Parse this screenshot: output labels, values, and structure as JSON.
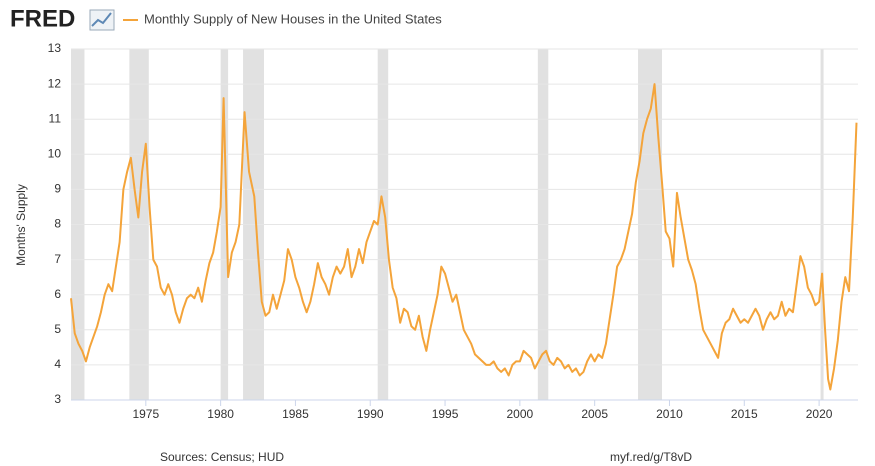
{
  "chart_data": {
    "type": "line",
    "logo": "FRED",
    "ylabel": "Months' Supply",
    "source": "Sources: Census; HUD",
    "link": "myf.red/g/T8vD",
    "xlim": [
      1970,
      2022.6
    ],
    "ylim": [
      3,
      13
    ],
    "xticks": [
      1975,
      1980,
      1985,
      1990,
      1995,
      2000,
      2005,
      2010,
      2015,
      2020
    ],
    "yticks": [
      3,
      4,
      5,
      6,
      7,
      8,
      9,
      10,
      11,
      12,
      13
    ],
    "grid": true,
    "recession_color": "#e1e1e1",
    "recessions": [
      [
        1970.0,
        1970.9
      ],
      [
        1973.9,
        1975.2
      ],
      [
        1980.0,
        1980.5
      ],
      [
        1981.5,
        1982.9
      ],
      [
        1990.5,
        1991.2
      ],
      [
        2001.2,
        2001.9
      ],
      [
        2007.9,
        2009.5
      ],
      [
        2020.1,
        2020.3
      ]
    ],
    "x": [
      1970,
      1970.25,
      1970.5,
      1970.75,
      1971,
      1971.25,
      1971.5,
      1971.75,
      1972,
      1972.25,
      1972.5,
      1972.75,
      1973,
      1973.25,
      1973.5,
      1973.75,
      1974,
      1974.25,
      1974.5,
      1974.75,
      1975,
      1975.25,
      1975.5,
      1975.75,
      1976,
      1976.25,
      1976.5,
      1976.75,
      1977,
      1977.25,
      1977.5,
      1977.75,
      1978,
      1978.25,
      1978.5,
      1978.75,
      1979,
      1979.25,
      1979.5,
      1979.75,
      1980,
      1980.2,
      1980.5,
      1980.75,
      1981,
      1981.25,
      1981.6,
      1981.9,
      1982.25,
      1982.5,
      1982.75,
      1983,
      1983.25,
      1983.5,
      1983.75,
      1984,
      1984.25,
      1984.5,
      1984.75,
      1985,
      1985.25,
      1985.5,
      1985.75,
      1986,
      1986.25,
      1986.5,
      1986.75,
      1987,
      1987.25,
      1987.5,
      1987.75,
      1988,
      1988.25,
      1988.5,
      1988.75,
      1989,
      1989.25,
      1989.5,
      1989.75,
      1990,
      1990.25,
      1990.5,
      1990.75,
      1991,
      1991.25,
      1991.5,
      1991.75,
      1992,
      1992.25,
      1992.5,
      1992.75,
      1993,
      1993.25,
      1993.5,
      1993.75,
      1994,
      1994.25,
      1994.5,
      1994.75,
      1995,
      1995.25,
      1995.5,
      1995.75,
      1996,
      1996.25,
      1996.5,
      1996.75,
      1997,
      1997.25,
      1997.5,
      1997.75,
      1998,
      1998.25,
      1998.5,
      1998.75,
      1999,
      1999.25,
      1999.5,
      1999.75,
      2000,
      2000.25,
      2000.5,
      2000.75,
      2001,
      2001.25,
      2001.5,
      2001.75,
      2002,
      2002.25,
      2002.5,
      2002.75,
      2003,
      2003.25,
      2003.5,
      2003.75,
      2004,
      2004.25,
      2004.5,
      2004.75,
      2005,
      2005.25,
      2005.5,
      2005.75,
      2006,
      2006.25,
      2006.5,
      2006.75,
      2007,
      2007.25,
      2007.5,
      2007.75,
      2008,
      2008.25,
      2008.5,
      2008.75,
      2009,
      2009.25,
      2009.5,
      2009.75,
      2010,
      2010.25,
      2010.5,
      2010.75,
      2011,
      2011.25,
      2011.5,
      2011.75,
      2012,
      2012.25,
      2012.5,
      2012.75,
      2013,
      2013.25,
      2013.5,
      2013.75,
      2014,
      2014.25,
      2014.5,
      2014.75,
      2015,
      2015.25,
      2015.5,
      2015.75,
      2016,
      2016.25,
      2016.5,
      2016.75,
      2017,
      2017.25,
      2017.5,
      2017.75,
      2018,
      2018.25,
      2018.5,
      2018.75,
      2019,
      2019.25,
      2019.5,
      2019.75,
      2020,
      2020.2,
      2020.4,
      2020.6,
      2020.75,
      2021,
      2021.25,
      2021.5,
      2021.75,
      2022,
      2022.25,
      2022.5
    ],
    "series": [
      {
        "name": "Monthly Supply of New Houses in the United States",
        "color": "#f4a43a",
        "values": [
          5.9,
          4.9,
          4.6,
          4.4,
          4.1,
          4.5,
          4.8,
          5.1,
          5.5,
          6.0,
          6.3,
          6.1,
          6.8,
          7.5,
          9.0,
          9.5,
          9.9,
          9.0,
          8.2,
          9.5,
          10.3,
          8.5,
          7.0,
          6.8,
          6.2,
          6.0,
          6.3,
          6.0,
          5.5,
          5.2,
          5.6,
          5.9,
          6.0,
          5.9,
          6.2,
          5.8,
          6.4,
          6.9,
          7.2,
          7.8,
          8.5,
          11.6,
          6.5,
          7.2,
          7.5,
          8.0,
          11.2,
          9.5,
          8.8,
          7.2,
          5.8,
          5.4,
          5.5,
          6.0,
          5.6,
          6.0,
          6.4,
          7.3,
          7.0,
          6.5,
          6.2,
          5.8,
          5.5,
          5.8,
          6.3,
          6.9,
          6.5,
          6.3,
          6.0,
          6.5,
          6.8,
          6.6,
          6.8,
          7.3,
          6.5,
          6.8,
          7.3,
          6.9,
          7.5,
          7.8,
          8.1,
          8.0,
          8.8,
          8.2,
          7.0,
          6.2,
          5.9,
          5.2,
          5.6,
          5.5,
          5.1,
          5.0,
          5.4,
          4.8,
          4.4,
          5.0,
          5.5,
          6.0,
          6.8,
          6.6,
          6.2,
          5.8,
          6.0,
          5.5,
          5.0,
          4.8,
          4.6,
          4.3,
          4.2,
          4.1,
          4.0,
          4.0,
          4.1,
          3.9,
          3.8,
          3.9,
          3.7,
          4.0,
          4.1,
          4.1,
          4.4,
          4.3,
          4.2,
          3.9,
          4.1,
          4.3,
          4.4,
          4.1,
          4.0,
          4.2,
          4.1,
          3.9,
          4.0,
          3.8,
          3.9,
          3.7,
          3.8,
          4.1,
          4.3,
          4.1,
          4.3,
          4.2,
          4.6,
          5.3,
          6.0,
          6.8,
          7.0,
          7.3,
          7.8,
          8.3,
          9.2,
          9.8,
          10.6,
          11.0,
          11.3,
          12.0,
          10.5,
          9.2,
          7.8,
          7.6,
          6.8,
          8.9,
          8.2,
          7.6,
          7.0,
          6.7,
          6.3,
          5.6,
          5.0,
          4.8,
          4.6,
          4.4,
          4.2,
          4.9,
          5.2,
          5.3,
          5.6,
          5.4,
          5.2,
          5.3,
          5.2,
          5.4,
          5.6,
          5.4,
          5.0,
          5.3,
          5.5,
          5.3,
          5.4,
          5.8,
          5.4,
          5.6,
          5.5,
          6.3,
          7.1,
          6.8,
          6.2,
          6.0,
          5.7,
          5.8,
          6.6,
          5.0,
          3.6,
          3.3,
          3.9,
          4.7,
          5.8,
          6.5,
          6.1,
          8.2,
          10.9
        ]
      }
    ]
  }
}
